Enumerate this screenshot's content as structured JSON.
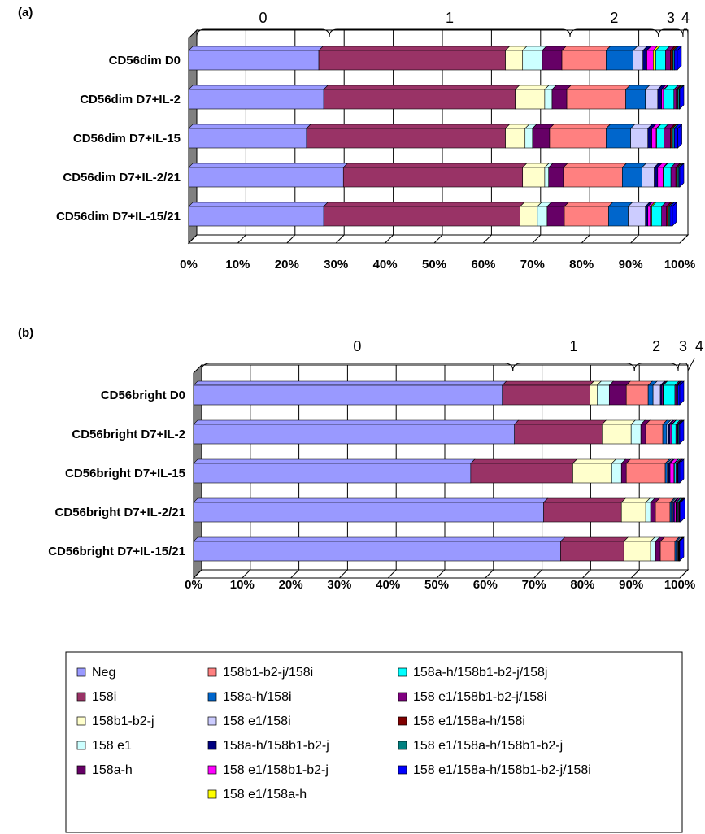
{
  "legend_colors": [
    "#9999ff",
    "#993366",
    "#ffffcc",
    "#ccffff",
    "#660066",
    "#ff8080",
    "#0066cc",
    "#ccccff",
    "#000080",
    "#ff00ff",
    "#ffff00",
    "#00ffff",
    "#800080",
    "#800000",
    "#008080",
    "#0000ff"
  ],
  "chart_data": [
    {
      "type": "bar",
      "orientation": "horizontal",
      "stacked": "percent",
      "panel_label": "(a)",
      "categories": [
        "CD56dim D0",
        "CD56dim D7+IL-2",
        "CD56dim D7+IL-15",
        "CD56dim D7+IL-2/21",
        "CD56dim D7+IL-15/21"
      ],
      "xlim": [
        0,
        100
      ],
      "x_ticks": [
        "0%",
        "10%",
        "20%",
        "30%",
        "40%",
        "50%",
        "60%",
        "70%",
        "80%",
        "90%",
        "100%"
      ],
      "grid": true,
      "group_labels": [
        {
          "label": "0",
          "range": [
            0,
            27
          ]
        },
        {
          "label": "1",
          "range": [
            27,
            76
          ]
        },
        {
          "label": "2",
          "range": [
            76,
            94
          ]
        },
        {
          "label": "3",
          "range": [
            94,
            99
          ]
        },
        {
          "label": "4",
          "range": [
            99,
            100
          ]
        }
      ],
      "series": [
        {
          "name": "Neg",
          "values": [
            26.5,
            27.5,
            24,
            31.5,
            27.5
          ]
        },
        {
          "name": "158i",
          "values": [
            38,
            39,
            40.5,
            36.5,
            40
          ]
        },
        {
          "name": "158b1-b2-j",
          "values": [
            3.5,
            6,
            4,
            4.5,
            3.5
          ]
        },
        {
          "name": "158 e1",
          "values": [
            4,
            1.5,
            1.5,
            0.8,
            2
          ]
        },
        {
          "name": "158a-h",
          "values": [
            4,
            3,
            3.5,
            3,
            3.5
          ]
        },
        {
          "name": "158b1-b2-j/158i",
          "values": [
            9,
            12,
            11.5,
            12,
            9
          ]
        },
        {
          "name": "158a-h/158i",
          "values": [
            5.5,
            4,
            5,
            4,
            4
          ]
        },
        {
          "name": "158 e1/158i",
          "values": [
            2,
            2.5,
            3.5,
            2.5,
            3.5
          ]
        },
        {
          "name": "158a-h/158b1-b2-j",
          "values": [
            0.8,
            0.8,
            0.8,
            0.7,
            0.5
          ]
        },
        {
          "name": "158 e1/158b1-b2-j",
          "values": [
            1.3,
            0.4,
            0.9,
            1.1,
            0.5
          ]
        },
        {
          "name": "158 e1/158a-h",
          "values": [
            0.5,
            0.1,
            0.1,
            0.1,
            0.3
          ]
        },
        {
          "name": "158a-h/158b1-b2-j/158j",
          "values": [
            2,
            2,
            1.5,
            1.5,
            2
          ]
        },
        {
          "name": "158 e1/158b1-b2-j/158i",
          "values": [
            1,
            0.5,
            1.3,
            1,
            1
          ]
        },
        {
          "name": "158 e1/158a-h/158i",
          "values": [
            0.5,
            0.3,
            0.4,
            0.3,
            0.4
          ]
        },
        {
          "name": "158 e1/158a-h/158b1-b2-j",
          "values": [
            0.3,
            0.3,
            0.4,
            0.3,
            0.3
          ]
        },
        {
          "name": "158 e1/158a-h/158b1-b2-j/158i",
          "values": [
            0.6,
            0.1,
            0.7,
            0.2,
            0.5
          ]
        }
      ]
    },
    {
      "type": "bar",
      "orientation": "horizontal",
      "stacked": "percent",
      "panel_label": "(b)",
      "categories": [
        "CD56bright D0",
        "CD56bright D7+IL-2",
        "CD56bright D7+IL-15",
        "CD56bright D7+IL-2/21",
        "CD56bright D7+IL-15/21"
      ],
      "xlim": [
        0,
        100
      ],
      "x_ticks": [
        "0%",
        "10%",
        "20%",
        "30%",
        "40%",
        "50%",
        "60%",
        "70%",
        "80%",
        "90%",
        "100%"
      ],
      "grid": true,
      "group_labels": [
        {
          "label": "0",
          "range": [
            0,
            64
          ]
        },
        {
          "label": "1",
          "range": [
            64,
            89
          ]
        },
        {
          "label": "2",
          "range": [
            89,
            98
          ]
        },
        {
          "label": "3",
          "range": [
            98,
            100
          ]
        },
        {
          "label": "4",
          "range": [
            100,
            100
          ]
        }
      ],
      "series": [
        {
          "name": "Neg",
          "values": [
            63.5,
            66,
            57,
            72,
            75.5
          ]
        },
        {
          "name": "158i",
          "values": [
            18,
            18,
            21,
            16,
            13
          ]
        },
        {
          "name": "158b1-b2-j",
          "values": [
            1.5,
            6,
            8,
            5,
            5.5
          ]
        },
        {
          "name": "158 e1",
          "values": [
            2.5,
            2,
            2,
            1,
            1
          ]
        },
        {
          "name": "158a-h",
          "values": [
            3.5,
            1,
            1,
            1,
            1
          ]
        },
        {
          "name": "158b1-b2-j/158i",
          "values": [
            4.5,
            3.5,
            8,
            3,
            3
          ]
        },
        {
          "name": "158a-h/158i",
          "values": [
            1,
            0.8,
            0.4,
            0.3,
            0.3
          ]
        },
        {
          "name": "158 e1/158i",
          "values": [
            1.5,
            0.4,
            0.3,
            0.3,
            0.3
          ]
        },
        {
          "name": "158a-h/158b1-b2-j",
          "values": [
            0.3,
            0.3,
            0.3,
            0.3,
            0.1
          ]
        },
        {
          "name": "158 e1/158b1-b2-j",
          "values": [
            0.2,
            0.3,
            0.8,
            0.3,
            0.1
          ]
        },
        {
          "name": "158 e1/158a-h",
          "values": [
            0.1,
            0.1,
            0.1,
            0.1,
            0
          ]
        },
        {
          "name": "158a-h/158b1-b2-j/158j",
          "values": [
            2.4,
            0.8,
            0.3,
            0.3,
            0.1
          ]
        },
        {
          "name": "158 e1/158b1-b2-j/158i",
          "values": [
            0.3,
            0.3,
            0.3,
            0.2,
            0.1
          ]
        },
        {
          "name": "158 e1/158a-h/158i",
          "values": [
            0.1,
            0.1,
            0.1,
            0.1,
            0
          ]
        },
        {
          "name": "158 e1/158a-h/158b1-b2-j",
          "values": [
            0.2,
            0.2,
            0.1,
            0.1,
            0
          ]
        },
        {
          "name": "158 e1/158a-h/158b1-b2-j/158i",
          "values": [
            0.4,
            0.2,
            0.3,
            0.2,
            0
          ]
        }
      ]
    }
  ]
}
